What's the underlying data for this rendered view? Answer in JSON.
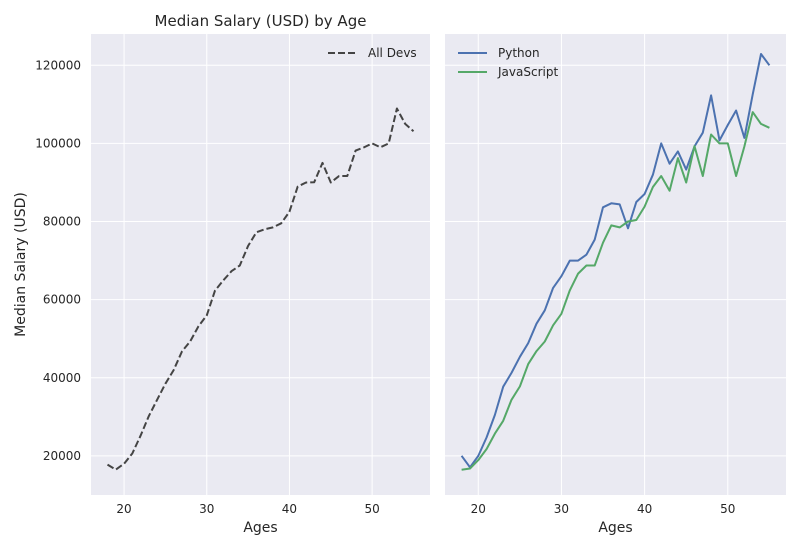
{
  "chart_data": [
    {
      "type": "line",
      "title": "Median Salary (USD) by Age",
      "xlabel": "Ages",
      "ylabel": "Median Salary (USD)",
      "xlim": [
        16,
        57
      ],
      "ylim": [
        10000,
        128000
      ],
      "xticks": [
        20,
        30,
        40,
        50
      ],
      "yticks": [
        20000,
        40000,
        60000,
        80000,
        100000,
        120000
      ],
      "grid": true,
      "legend_position": "top-right",
      "x": [
        18,
        19,
        20,
        21,
        22,
        23,
        24,
        25,
        26,
        27,
        28,
        29,
        30,
        31,
        32,
        33,
        34,
        35,
        36,
        37,
        38,
        39,
        40,
        41,
        42,
        43,
        44,
        45,
        46,
        47,
        48,
        49,
        50,
        51,
        52,
        53,
        54,
        55
      ],
      "series": [
        {
          "name": "All Devs",
          "color": "#444444",
          "dash": "dashed",
          "values": [
            17784,
            16500,
            18012,
            20628,
            25206,
            30252,
            34368,
            38496,
            42000,
            46752,
            49320,
            53200,
            56000,
            62316,
            64928,
            67317,
            68748,
            73752,
            77232,
            78000,
            78508,
            79536,
            82488,
            88935,
            90000,
            90056,
            95000,
            90000,
            91633,
            91660,
            98150,
            98964,
            100000,
            98988,
            100000,
            108923,
            105000,
            103117
          ]
        }
      ]
    },
    {
      "type": "line",
      "title": "",
      "xlabel": "Ages",
      "ylabel": "",
      "xlim": [
        16,
        57
      ],
      "ylim": [
        10000,
        128000
      ],
      "xticks": [
        20,
        30,
        40,
        50
      ],
      "yticks": [
        20000,
        40000,
        60000,
        80000,
        100000,
        120000
      ],
      "grid": true,
      "legend_position": "top-left",
      "x": [
        18,
        19,
        20,
        21,
        22,
        23,
        24,
        25,
        26,
        27,
        28,
        29,
        30,
        31,
        32,
        33,
        34,
        35,
        36,
        37,
        38,
        39,
        40,
        41,
        42,
        43,
        44,
        45,
        46,
        47,
        48,
        49,
        50,
        51,
        52,
        53,
        54,
        55
      ],
      "series": [
        {
          "name": "Python",
          "color": "#4c72b0",
          "dash": "solid",
          "values": [
            20046,
            17100,
            20000,
            24744,
            30500,
            37732,
            41247,
            45372,
            48876,
            53850,
            57287,
            63016,
            65998,
            70003,
            70000,
            71496,
            75370,
            83640,
            84666,
            84392,
            78254,
            85000,
            87038,
            91991,
            100000,
            94796,
            97962,
            93302,
            99240,
            102736,
            112285,
            100771,
            104708,
            108423,
            101407,
            112542,
            122870,
            120000
          ]
        },
        {
          "name": "JavaScript",
          "color": "#55a868",
          "dash": "solid",
          "values": [
            16446,
            16791,
            18942,
            21780,
            25704,
            29000,
            34372,
            37810,
            43515,
            46823,
            49293,
            53437,
            56373,
            62375,
            66674,
            68745,
            68746,
            74583,
            79000,
            78508,
            79996,
            80403,
            83820,
            88833,
            91660,
            87892,
            96243,
            90000,
            99313,
            91660,
            102264,
            100000,
            100000,
            91660,
            99240,
            108000,
            105000,
            104000
          ]
        }
      ]
    }
  ]
}
